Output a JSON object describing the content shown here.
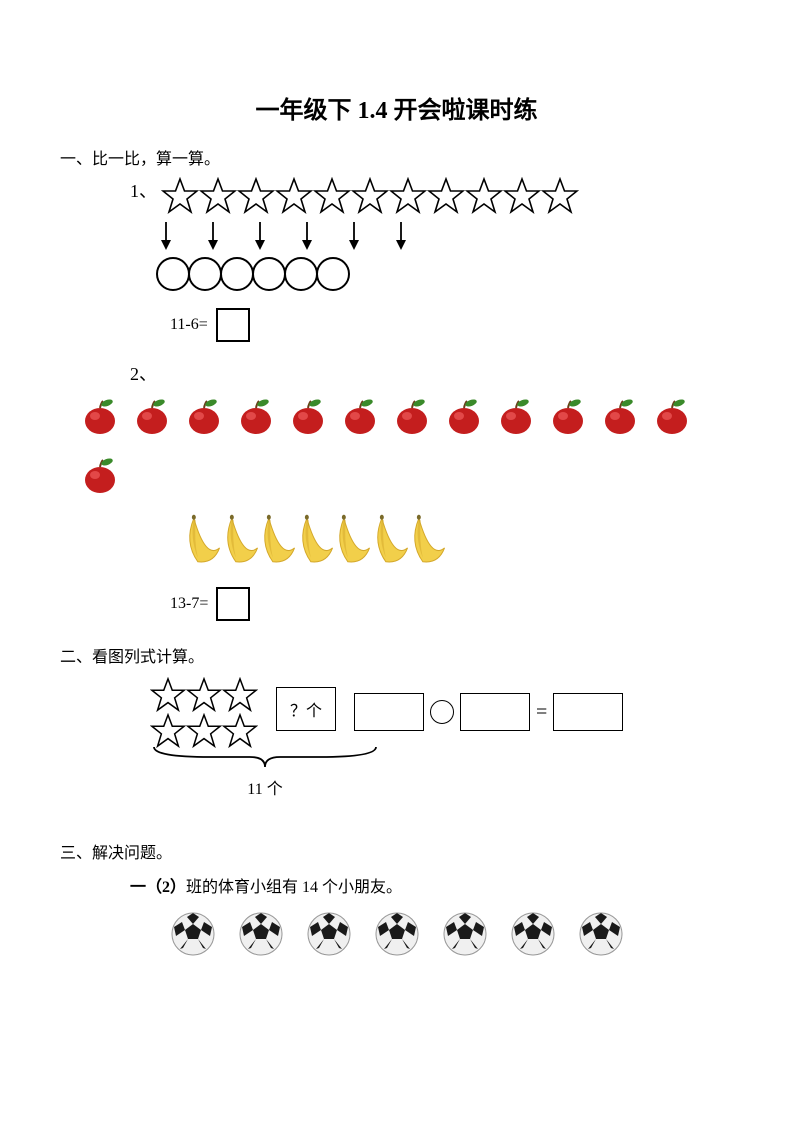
{
  "title": "一年级下 1.4 开会啦课时练",
  "section1": {
    "label": "一、比一比，算一算。",
    "q1": {
      "number": "1、",
      "stars_count": 11,
      "circles_count": 6,
      "arrows_count": 6,
      "equation": "11-6=",
      "star_stroke": "#000000",
      "star_size": 38,
      "circle_size": 34,
      "arrow_length": 28
    },
    "q2": {
      "number": "2、",
      "apples_row1": 12,
      "apples_row2": 1,
      "bananas_count": 7,
      "equation": "13-7=",
      "apple_body_color": "#c41e1e",
      "apple_highlight": "#f05a5a",
      "apple_leaf_color": "#3a8a2a",
      "apple_stem_color": "#6b3e1a",
      "apple_size": 40,
      "banana_body_color": "#f2cf4a",
      "banana_shadow_color": "#d4a82a",
      "banana_tip_color": "#7a6a2a",
      "banana_size": 58
    }
  },
  "section2": {
    "label": "二、看图列式计算。",
    "stars_rows": 2,
    "stars_cols": 3,
    "star_size": 36,
    "qmark_text": "？个",
    "brace_label": "11 个",
    "eq_sign": "="
  },
  "section3": {
    "label": "三、解决问题。",
    "text_prefix": "一（2）",
    "text_suffix": "班的体育小组有 14 个小朋友。",
    "balls_count": 7,
    "ball_size": 46,
    "ball_white": "#f0f0f0",
    "ball_black": "#1a1a1a",
    "ball_outline": "#888888"
  },
  "colors": {
    "text": "#000000",
    "background": "#ffffff"
  }
}
